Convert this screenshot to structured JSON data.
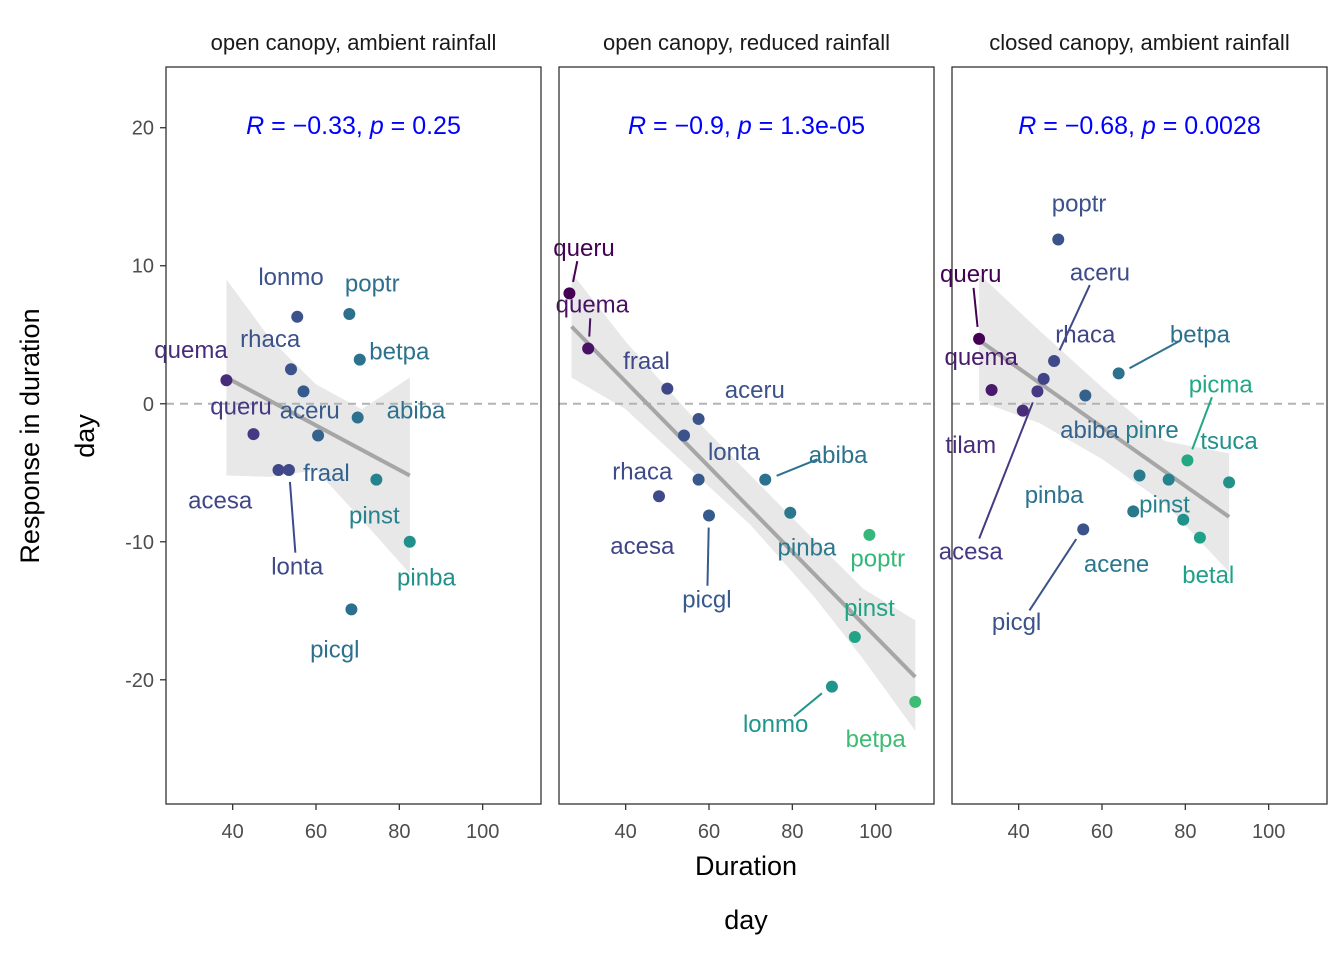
{
  "chart_data": {
    "type": "scatter",
    "xlabel": "Duration",
    "xlabel2": "day",
    "ylabel": "Response in duration",
    "ylabel2": "day",
    "xlim": [
      24,
      114
    ],
    "ylim": [
      -29,
      24.4
    ],
    "xticks": [
      40,
      60,
      80,
      100
    ],
    "yticks": [
      20,
      10,
      0,
      -10,
      -20
    ],
    "grid": false,
    "legend": "none",
    "colors": {
      "fit_line": "#a6a6a6",
      "ribbon": "#e6e6e6",
      "zero_line": "#b3b3b3",
      "stat_text": "#0000ff",
      "panel_border": "#333333"
    },
    "panels": [
      {
        "title": "open canopy, ambient rainfall",
        "stat": {
          "r": "−0.33",
          "p": "0.25"
        },
        "fit": {
          "x": [
            38.5,
            82.5
          ],
          "y": [
            1.9,
            -5.2
          ]
        },
        "band": {
          "x": [
            38.5,
            49,
            60,
            71,
            82.5
          ],
          "upper": [
            9.0,
            4.7,
            1.4,
            -0.4,
            1.9
          ],
          "lower": [
            -5.2,
            -5.3,
            -4.8,
            -8.4,
            -12.3
          ]
        },
        "points": [
          {
            "name": "quema",
            "x": 38.5,
            "y": 1.7,
            "color": "#472c7a",
            "lx": 30,
            "ly": 3.9
          },
          {
            "name": "queru",
            "x": 45,
            "y": -2.2,
            "color": "#443983",
            "lx": 42,
            "ly": -0.2
          },
          {
            "name": "acesa",
            "x": 51,
            "y": -4.8,
            "color": "#3f4788",
            "lx": 37,
            "ly": -7.0
          },
          {
            "name": "lonta",
            "x": 53.5,
            "y": -4.8,
            "color": "#3e4a89",
            "lx": 55.5,
            "ly": -11.8,
            "lead": true
          },
          {
            "name": "rhaca",
            "x": 54,
            "y": 2.5,
            "color": "#3b528b",
            "lx": 49,
            "ly": 4.7
          },
          {
            "name": "lonmo",
            "x": 55.5,
            "y": 6.3,
            "color": "#3b528b",
            "lx": 54,
            "ly": 9.2
          },
          {
            "name": "aceru",
            "x": 57,
            "y": 0.9,
            "color": "#375a8c",
            "lx": 58.5,
            "ly": -0.5
          },
          {
            "name": "fraal",
            "x": 60.5,
            "y": -2.3,
            "color": "#33628d",
            "lx": 62.5,
            "ly": -5.0
          },
          {
            "name": "poptr",
            "x": 68,
            "y": 6.5,
            "color": "#2e6f8e",
            "lx": 73.5,
            "ly": 8.7
          },
          {
            "name": "picgl",
            "x": 68.5,
            "y": -14.9,
            "color": "#2d708e",
            "lx": 64.5,
            "ly": -17.8
          },
          {
            "name": "abiba",
            "x": 70,
            "y": -1.0,
            "color": "#2d718e",
            "lx": 84,
            "ly": -0.5
          },
          {
            "name": "betpa",
            "x": 70.5,
            "y": 3.2,
            "color": "#2c728e",
            "lx": 80,
            "ly": 3.8
          },
          {
            "name": "pinst",
            "x": 74.5,
            "y": -5.5,
            "color": "#26828e",
            "lx": 74,
            "ly": -8.1
          },
          {
            "name": "pinba",
            "x": 82.5,
            "y": -10.0,
            "color": "#21908d",
            "lx": 86.5,
            "ly": -12.6
          }
        ]
      },
      {
        "title": "open canopy, reduced rainfall",
        "stat": {
          "r": "−0.9",
          "p": "1.3e-05"
        },
        "fit": {
          "x": [
            27,
            109.5
          ],
          "y": [
            5.6,
            -19.8
          ]
        },
        "band": {
          "x": [
            27,
            40,
            55,
            70,
            85,
            97,
            109.5
          ],
          "upper": [
            9.5,
            4.5,
            -0.6,
            -5.2,
            -9.8,
            -13.4,
            -15.7
          ],
          "lower": [
            1.9,
            -0.4,
            -4.6,
            -8.8,
            -13.9,
            -18.5,
            -23.7
          ]
        },
        "points": [
          {
            "name": "queru",
            "x": 26.5,
            "y": 8.0,
            "color": "#440154",
            "lx": 30,
            "ly": 11.3,
            "lead": true
          },
          {
            "name": "quema",
            "x": 31,
            "y": 4.0,
            "color": "#471164",
            "lx": 32,
            "ly": 7.2,
            "lead": true
          },
          {
            "name": "fraal",
            "x": 50,
            "y": 1.1,
            "color": "#3f4788",
            "lx": 45,
            "ly": 3.1
          },
          {
            "name": "rhaca",
            "x": 48,
            "y": -6.7,
            "color": "#3e4a89",
            "lx": 44,
            "ly": -4.9
          },
          {
            "name": "acesa",
            "x": 48,
            "y": -6.7,
            "color": "#404588",
            "lx": 44,
            "ly": -10.3,
            "hidden": true
          },
          {
            "name": "aceru",
            "x": 57.5,
            "y": -1.1,
            "color": "#3b528b",
            "lx": 71,
            "ly": 1.0
          },
          {
            "name": "lonta",
            "x": 54,
            "y": -2.3,
            "color": "#3b528b",
            "lx": 66,
            "ly": -3.5
          },
          {
            "name": "picgl",
            "x": 60,
            "y": -8.1,
            "color": "#375a8c",
            "lx": 59.5,
            "ly": -14.2,
            "lead": true
          },
          {
            "name": "x1",
            "x": 57.5,
            "y": -5.5,
            "color": "#375a8c",
            "hide_label": true
          },
          {
            "name": "abiba",
            "x": 73.5,
            "y": -5.5,
            "color": "#2c728e",
            "lx": 91,
            "ly": -3.7,
            "lead": true
          },
          {
            "name": "pinba",
            "x": 79.5,
            "y": -7.9,
            "color": "#2a788e",
            "lx": 83.5,
            "ly": -10.4
          },
          {
            "name": "poptr",
            "x": 98.5,
            "y": -9.5,
            "color": "#35b779",
            "lx": 100.5,
            "ly": -11.2
          },
          {
            "name": "pinst",
            "x": 95,
            "y": -16.9,
            "color": "#20a386",
            "lx": 98.5,
            "ly": -14.8
          },
          {
            "name": "lonmo",
            "x": 89.5,
            "y": -20.5,
            "color": "#1f958b",
            "lx": 76,
            "ly": -23.2,
            "lead": true
          },
          {
            "name": "betpa",
            "x": 109.5,
            "y": -21.6,
            "color": "#3dbc74",
            "lx": 100,
            "ly": -24.3
          }
        ]
      },
      {
        "title": "closed canopy, ambient rainfall",
        "stat": {
          "r": "−0.68",
          "p": "0.0028"
        },
        "fit": {
          "x": [
            30.5,
            90.5
          ],
          "y": [
            4.6,
            -8.2
          ]
        },
        "band": {
          "x": [
            30.5,
            45,
            60,
            75,
            90.5
          ],
          "upper": [
            9.4,
            5.3,
            1.2,
            -2.7,
            -3.6
          ],
          "lower": [
            0.2,
            -1.4,
            -4.0,
            -7.2,
            -12.2
          ]
        },
        "points": [
          {
            "name": "queru",
            "x": 30.5,
            "y": 4.7,
            "color": "#440154",
            "lx": 28.5,
            "ly": 9.4,
            "lead": true
          },
          {
            "name": "quema",
            "x": 33.5,
            "y": 1.0,
            "color": "#481a6c",
            "lx": 31,
            "ly": 3.4
          },
          {
            "name": "tilam",
            "x": 41,
            "y": -0.5,
            "color": "#472c7a",
            "lx": 28.5,
            "ly": -3.0
          },
          {
            "name": "acesa",
            "x": 44.5,
            "y": 0.9,
            "color": "#443983",
            "lx": 28.5,
            "ly": -10.7,
            "lead": true
          },
          {
            "name": "rhaca",
            "x": 46,
            "y": 1.8,
            "color": "#404588",
            "lx": 56,
            "ly": 5.0
          },
          {
            "name": "aceru",
            "x": 48.5,
            "y": 3.1,
            "color": "#3e4a89",
            "lx": 59.5,
            "ly": 9.5,
            "lead": true
          },
          {
            "name": "poptr",
            "x": 49.5,
            "y": 11.9,
            "color": "#3b528b",
            "lx": 54.5,
            "ly": 14.5
          },
          {
            "name": "abiba",
            "x": 56,
            "y": 0.6,
            "color": "#33638d",
            "lx": 57,
            "ly": -1.9
          },
          {
            "name": "picgl",
            "x": 55.5,
            "y": -9.1,
            "color": "#3b528b",
            "lx": 39.5,
            "ly": -15.8,
            "lead": true
          },
          {
            "name": "pinba",
            "x": 64,
            "y": 2.2,
            "color": "#2c728e",
            "lx": 48.5,
            "ly": -6.6
          },
          {
            "name": "betpa",
            "x": 64,
            "y": 2.2,
            "color": "#2d708e",
            "lx": 83.5,
            "ly": 5.0,
            "lead": true,
            "hidden": true
          },
          {
            "name": "acene",
            "x": 67.5,
            "y": -7.8,
            "color": "#2a788e",
            "lx": 63.5,
            "ly": -11.6
          },
          {
            "name": "pinre",
            "x": 69,
            "y": -5.2,
            "color": "#287c8e",
            "lx": 72,
            "ly": -1.9
          },
          {
            "name": "pinst",
            "x": 76,
            "y": -5.5,
            "color": "#25838e",
            "lx": 75,
            "ly": -7.3
          },
          {
            "name": "x2",
            "x": 79.5,
            "y": -8.4,
            "color": "#21918c",
            "hide_label": true
          },
          {
            "name": "picma",
            "x": 80.5,
            "y": -4.1,
            "color": "#22a884",
            "lx": 88.5,
            "ly": 1.4,
            "lead": true
          },
          {
            "name": "betal",
            "x": 83.5,
            "y": -9.7,
            "color": "#1fa188",
            "lx": 85.5,
            "ly": -12.4
          },
          {
            "name": "tsuca",
            "x": 90.5,
            "y": -5.7,
            "color": "#21918c",
            "lx": 90.5,
            "ly": -2.7
          }
        ]
      }
    ]
  }
}
